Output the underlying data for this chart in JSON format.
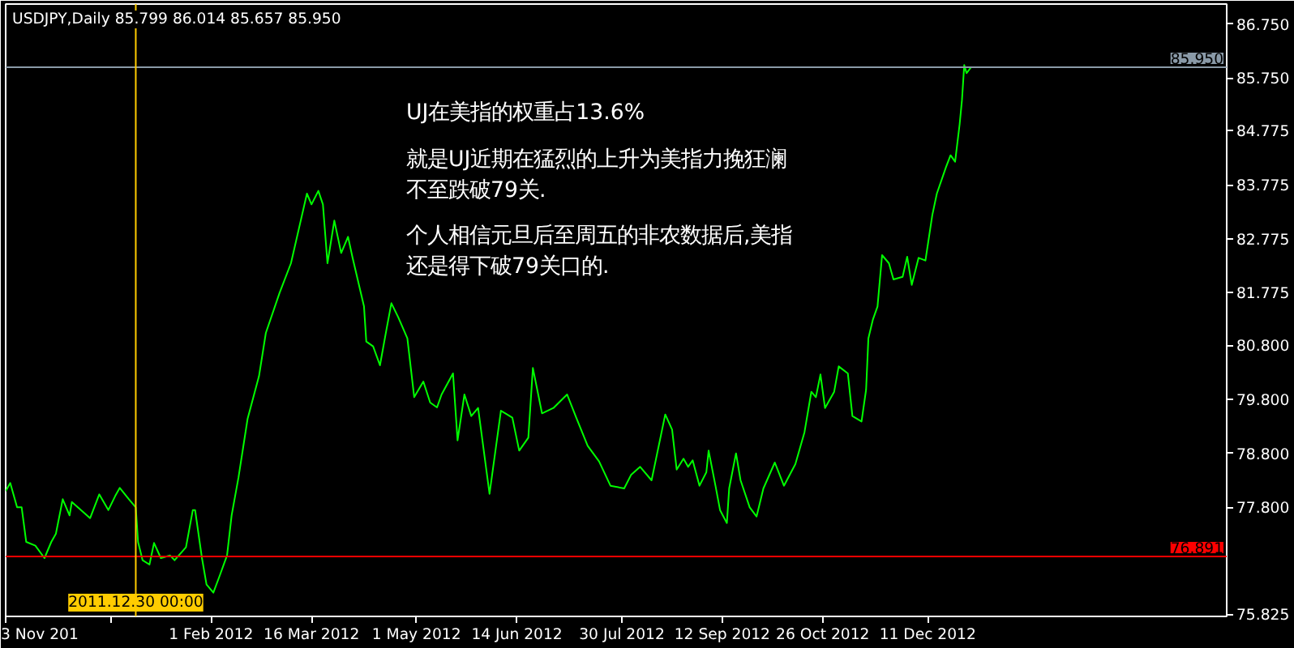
{
  "chart_data": {
    "type": "line",
    "title": "USDJPY,Daily",
    "subtitle": "85.799 86.014 85.657 85.950",
    "annotations": [
      "UJ在美指的权重占13.6%",
      "就是UJ近期在猛烈的上升为美指力挽狂澜不至跌破79关.",
      "个人相信元旦后至周五的非农数据后,美指还是得下破79关口的."
    ],
    "series": [
      {
        "color": "#00ff00",
        "x": [
          "2011-11-03",
          "2011-11-05",
          "2011-11-08",
          "2011-11-10",
          "2011-11-12",
          "2011-11-16",
          "2011-11-20",
          "2011-11-23",
          "2011-11-25",
          "2011-11-28",
          "2011-12-01",
          "2011-12-02",
          "2011-12-07",
          "2011-12-10",
          "2011-12-14",
          "2011-12-18",
          "2011-12-21",
          "2011-12-23",
          "2011-12-27",
          "2011-12-30",
          "2011-12-31",
          "2012-01-02",
          "2012-01-05",
          "2012-01-07",
          "2012-01-10",
          "2012-01-14",
          "2012-01-16",
          "2012-01-21",
          "2012-01-24",
          "2012-01-25",
          "2012-01-28",
          "2012-01-30",
          "2012-02-02",
          "2012-02-05",
          "2012-02-08",
          "2012-02-10",
          "2012-02-13",
          "2012-02-17",
          "2012-02-22",
          "2012-02-25",
          "2012-03-02",
          "2012-03-07",
          "2012-03-14",
          "2012-03-16",
          "2012-03-19",
          "2012-03-21",
          "2012-03-23",
          "2012-03-26",
          "2012-03-29",
          "2012-04-01",
          "2012-04-03",
          "2012-04-08",
          "2012-04-09",
          "2012-04-12",
          "2012-04-15",
          "2012-04-18",
          "2012-04-20",
          "2012-04-23",
          "2012-04-27",
          "2012-04-30",
          "2012-05-04",
          "2012-05-07",
          "2012-05-10",
          "2012-05-12",
          "2012-05-17",
          "2012-05-19",
          "2012-05-22",
          "2012-05-25",
          "2012-05-28",
          "2012-06-02",
          "2012-06-07",
          "2012-06-12",
          "2012-06-15",
          "2012-06-19",
          "2012-06-21",
          "2012-06-25",
          "2012-06-30",
          "2012-07-06",
          "2012-07-10",
          "2012-07-15",
          "2012-07-20",
          "2012-07-25",
          "2012-07-31",
          "2012-08-03",
          "2012-08-07",
          "2012-08-12",
          "2012-08-18",
          "2012-08-21",
          "2012-08-23",
          "2012-08-26",
          "2012-08-28",
          "2012-08-30",
          "2012-09-02",
          "2012-09-05",
          "2012-09-06",
          "2012-09-09",
          "2012-09-11",
          "2012-09-14",
          "2012-09-15",
          "2012-09-18",
          "2012-09-20",
          "2012-09-24",
          "2012-09-27",
          "2012-09-30",
          "2012-10-05",
          "2012-10-09",
          "2012-10-14",
          "2012-10-18",
          "2012-10-21",
          "2012-10-23",
          "2012-10-25",
          "2012-10-27",
          "2012-10-31",
          "2012-11-02",
          "2012-11-06",
          "2012-11-08",
          "2012-11-12",
          "2012-11-14",
          "2012-11-15",
          "2012-11-17",
          "2012-11-19",
          "2012-11-21",
          "2012-11-24",
          "2012-11-26",
          "2012-11-30",
          "2012-12-02",
          "2012-12-04",
          "2012-12-07",
          "2012-12-10",
          "2012-12-13",
          "2012-12-15",
          "2012-12-19",
          "2012-12-21",
          "2012-12-23",
          "2012-12-25",
          "2012-12-26",
          "2012-12-27",
          "2012-12-28",
          "2012-12-30"
        ],
        "values": [
          78.1,
          78.25,
          77.8,
          77.8,
          77.16,
          77.09,
          76.86,
          77.16,
          77.31,
          77.95,
          77.65,
          77.9,
          77.71,
          77.6,
          78.04,
          77.75,
          78.01,
          78.16,
          77.95,
          77.8,
          77.16,
          76.82,
          76.74,
          77.14,
          76.86,
          76.91,
          76.82,
          77.06,
          77.75,
          77.75,
          76.86,
          76.37,
          76.22,
          76.56,
          76.91,
          77.65,
          78.35,
          79.44,
          80.23,
          81.03,
          81.77,
          82.32,
          83.61,
          83.41,
          83.66,
          83.41,
          82.32,
          83.11,
          82.51,
          82.81,
          82.42,
          81.52,
          80.87,
          80.78,
          80.43,
          81.13,
          81.58,
          81.32,
          80.93,
          79.84,
          80.13,
          79.74,
          79.65,
          79.89,
          80.28,
          79.04,
          79.89,
          79.49,
          79.64,
          78.05,
          79.59,
          79.46,
          78.85,
          79.09,
          80.38,
          79.54,
          79.64,
          79.89,
          79.46,
          78.94,
          78.65,
          78.2,
          78.15,
          78.4,
          78.55,
          78.3,
          79.52,
          79.24,
          78.5,
          78.7,
          78.55,
          78.67,
          78.2,
          78.45,
          78.85,
          78.2,
          77.75,
          77.51,
          78.15,
          78.8,
          78.3,
          77.8,
          77.63,
          78.15,
          78.63,
          78.2,
          78.6,
          79.19,
          79.94,
          79.84,
          80.26,
          79.64,
          79.94,
          80.41,
          80.28,
          79.49,
          79.39,
          79.98,
          80.93,
          81.28,
          81.52,
          82.47,
          82.32,
          82.02,
          82.07,
          82.44,
          81.92,
          82.42,
          82.37,
          83.21,
          83.61,
          84.1,
          84.32,
          84.2,
          84.9,
          85.34,
          85.99,
          85.84,
          85.95
        ]
      }
    ],
    "xlim": [
      "2011-11-03",
      "2013-04-21"
    ],
    "ylim": [
      75.78,
      87.12
    ],
    "xticks": [
      {
        "value": "2011-11-03",
        "label": "3 Nov 201"
      },
      {
        "value": "2011-12-19",
        "label": null
      },
      {
        "value": "2012-02-01",
        "label": "1 Feb 2012"
      },
      {
        "value": "2012-03-16",
        "label": "16 Mar 2012"
      },
      {
        "value": "2012-05-01",
        "label": "1 May 2012"
      },
      {
        "value": "2012-06-14",
        "label": "14 Jun 2012"
      },
      {
        "value": "2012-07-30",
        "label": "30 Jul 2012"
      },
      {
        "value": "2012-09-12",
        "label": "12 Sep 2012"
      },
      {
        "value": "2012-10-26",
        "label": "26 Oct 2012"
      },
      {
        "value": "2012-12-11",
        "label": "11 Dec 2012"
      }
    ],
    "yticks": [
      {
        "value": 75.825,
        "label": "75.825"
      },
      {
        "value": 77.8,
        "label": "77.800"
      },
      {
        "value": 78.8,
        "label": "78.800"
      },
      {
        "value": 79.8,
        "label": "79.800"
      },
      {
        "value": 80.8,
        "label": "80.800"
      },
      {
        "value": 81.775,
        "label": "81.775"
      },
      {
        "value": 82.775,
        "label": "82.775"
      },
      {
        "value": 83.775,
        "label": "83.775"
      },
      {
        "value": 84.775,
        "label": "84.775"
      },
      {
        "value": 85.75,
        "label": "85.750"
      },
      {
        "value": 86.75,
        "label": "86.750"
      }
    ],
    "ref_lines": [
      {
        "axis": "y",
        "value": 85.95,
        "label": "85.950",
        "color": "#8a9aa8"
      },
      {
        "axis": "y",
        "value": 76.891,
        "label": "76.891",
        "color": "#ff0000"
      },
      {
        "axis": "x",
        "value": "2011-12-30",
        "label": "2011.12.30 00:00",
        "color": "#ffcc00"
      }
    ],
    "grid": false,
    "marker": "none",
    "line_style": "solid"
  }
}
